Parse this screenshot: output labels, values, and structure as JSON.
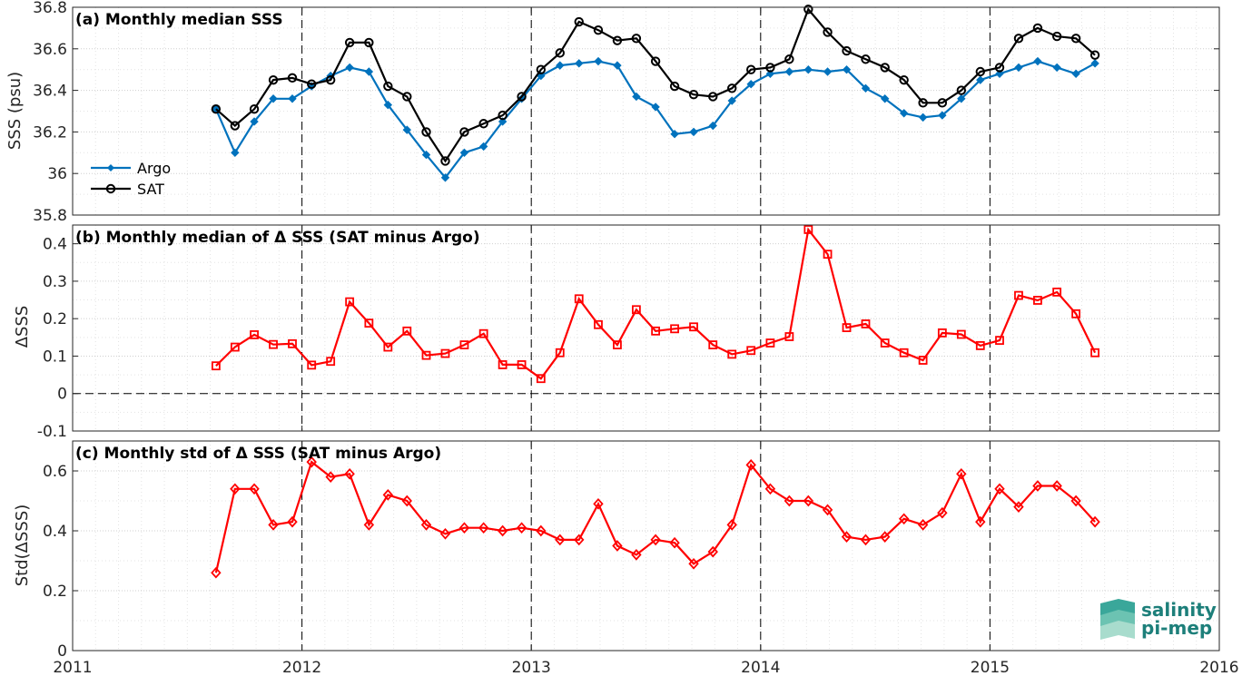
{
  "chart_data": [
    {
      "type": "line",
      "title": "(a) Monthly median SSS",
      "ylabel": "SSS (psu)",
      "xlabel": "",
      "xlim": [
        2011,
        2016
      ],
      "ylim": [
        35.8,
        36.8
      ],
      "xticks": [
        "2011",
        "2012",
        "2013",
        "2014",
        "2015",
        "2016"
      ],
      "yticks": [
        "35.8",
        "36",
        "36.2",
        "36.4",
        "36.6",
        "36.8"
      ],
      "grid": true,
      "legend": "left",
      "x": [
        2011.625,
        2011.708,
        2011.792,
        2011.875,
        2011.958,
        2012.042,
        2012.125,
        2012.208,
        2012.292,
        2012.375,
        2012.458,
        2012.542,
        2012.625,
        2012.708,
        2012.792,
        2012.875,
        2012.958,
        2013.042,
        2013.125,
        2013.208,
        2013.292,
        2013.375,
        2013.458,
        2013.542,
        2013.625,
        2013.708,
        2013.792,
        2013.875,
        2013.958,
        2014.042,
        2014.125,
        2014.208,
        2014.292,
        2014.375,
        2014.458,
        2014.542,
        2014.625,
        2014.708,
        2014.792,
        2014.875,
        2014.958,
        2015.042,
        2015.125,
        2015.208,
        2015.292,
        2015.375,
        2015.458
      ],
      "series": [
        {
          "name": "Argo",
          "color": "#0072BD",
          "marker": "diamond-filled",
          "values": [
            36.31,
            36.1,
            36.25,
            36.36,
            36.36,
            36.42,
            36.47,
            36.51,
            36.49,
            36.33,
            36.21,
            36.09,
            35.98,
            36.1,
            36.13,
            36.25,
            36.36,
            36.47,
            36.52,
            36.53,
            36.54,
            36.52,
            36.37,
            36.32,
            36.19,
            36.2,
            36.23,
            36.35,
            36.43,
            36.48,
            36.49,
            36.5,
            36.49,
            36.5,
            36.41,
            36.36,
            36.29,
            36.27,
            36.28,
            36.36,
            36.45,
            36.48,
            36.51,
            36.54,
            36.51,
            36.48,
            36.53
          ]
        },
        {
          "name": "SAT",
          "color": "#000000",
          "marker": "circle-open",
          "values": [
            36.31,
            36.23,
            36.31,
            36.45,
            36.46,
            36.43,
            36.45,
            36.63,
            36.63,
            36.42,
            36.37,
            36.2,
            36.06,
            36.2,
            36.24,
            36.28,
            36.37,
            36.5,
            36.58,
            36.73,
            36.69,
            36.64,
            36.65,
            36.54,
            36.42,
            36.38,
            36.37,
            36.41,
            36.5,
            36.51,
            36.55,
            36.79,
            36.68,
            36.59,
            36.55,
            36.51,
            36.45,
            36.34,
            36.34,
            36.4,
            36.49,
            36.51,
            36.65,
            36.7,
            36.66,
            36.65,
            36.57
          ]
        }
      ]
    },
    {
      "type": "line",
      "title": "(b) Monthly median of Δ SSS (SAT minus Argo)",
      "ylabel": "ΔSSS",
      "xlabel": "",
      "xlim": [
        2011,
        2016
      ],
      "ylim": [
        -0.1,
        0.45
      ],
      "yticks": [
        "-0.1",
        "0",
        "0.1",
        "0.2",
        "0.3",
        "0.4"
      ],
      "grid": true,
      "reference_line": 0,
      "x": [
        2011.625,
        2011.708,
        2011.792,
        2011.875,
        2011.958,
        2012.042,
        2012.125,
        2012.208,
        2012.292,
        2012.375,
        2012.458,
        2012.542,
        2012.625,
        2012.708,
        2012.792,
        2012.875,
        2012.958,
        2013.042,
        2013.125,
        2013.208,
        2013.292,
        2013.375,
        2013.458,
        2013.542,
        2013.625,
        2013.708,
        2013.792,
        2013.875,
        2013.958,
        2014.042,
        2014.125,
        2014.208,
        2014.292,
        2014.375,
        2014.458,
        2014.542,
        2014.625,
        2014.708,
        2014.792,
        2014.875,
        2014.958,
        2015.042,
        2015.125,
        2015.208,
        2015.292,
        2015.375,
        2015.458
      ],
      "series": [
        {
          "color": "#FF0000",
          "marker": "square-open",
          "values": [
            0.074,
            0.124,
            0.157,
            0.131,
            0.133,
            0.076,
            0.086,
            0.245,
            0.188,
            0.124,
            0.167,
            0.102,
            0.107,
            0.13,
            0.16,
            0.077,
            0.077,
            0.04,
            0.109,
            0.253,
            0.184,
            0.13,
            0.224,
            0.167,
            0.173,
            0.178,
            0.13,
            0.105,
            0.115,
            0.135,
            0.152,
            0.438,
            0.372,
            0.176,
            0.186,
            0.135,
            0.109,
            0.089,
            0.162,
            0.158,
            0.128,
            0.142,
            0.262,
            0.249,
            0.271,
            0.213,
            0.109
          ]
        }
      ]
    },
    {
      "type": "line",
      "title": "(c) Monthly std of Δ SSS (SAT minus Argo)",
      "ylabel": "Std(ΔSSS)",
      "xlabel": "",
      "xlim": [
        2011,
        2016
      ],
      "ylim": [
        0,
        0.7
      ],
      "yticks": [
        "0",
        "0.2",
        "0.4",
        "0.6"
      ],
      "grid": true,
      "x": [
        2011.625,
        2011.708,
        2011.792,
        2011.875,
        2011.958,
        2012.042,
        2012.125,
        2012.208,
        2012.292,
        2012.375,
        2012.458,
        2012.542,
        2012.625,
        2012.708,
        2012.792,
        2012.875,
        2012.958,
        2013.042,
        2013.125,
        2013.208,
        2013.292,
        2013.375,
        2013.458,
        2013.542,
        2013.625,
        2013.708,
        2013.792,
        2013.875,
        2013.958,
        2014.042,
        2014.125,
        2014.208,
        2014.292,
        2014.375,
        2014.458,
        2014.542,
        2014.625,
        2014.708,
        2014.792,
        2014.875,
        2014.958,
        2015.042,
        2015.125,
        2015.208,
        2015.292,
        2015.375,
        2015.458
      ],
      "series": [
        {
          "color": "#FF0000",
          "marker": "diamond-open",
          "values": [
            0.26,
            0.54,
            0.54,
            0.42,
            0.43,
            0.63,
            0.58,
            0.59,
            0.42,
            0.52,
            0.5,
            0.42,
            0.39,
            0.41,
            0.41,
            0.4,
            0.41,
            0.4,
            0.37,
            0.37,
            0.49,
            0.35,
            0.32,
            0.37,
            0.36,
            0.29,
            0.33,
            0.42,
            0.62,
            0.54,
            0.5,
            0.5,
            0.47,
            0.38,
            0.37,
            0.38,
            0.44,
            0.42,
            0.46,
            0.59,
            0.43,
            0.54,
            0.48,
            0.55,
            0.55,
            0.5,
            0.43
          ]
        }
      ]
    }
  ],
  "logo": {
    "line1": "salinity",
    "line2": "pi-mep"
  }
}
